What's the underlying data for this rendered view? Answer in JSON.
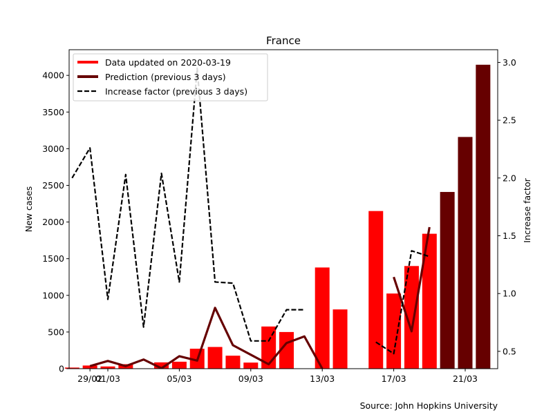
{
  "source_note": "Source: John Hopkins University",
  "chart_data": {
    "type": "bar",
    "title": "France",
    "ylabel": "New cases",
    "y2label": "Increase factor",
    "ylim": [
      0,
      4350
    ],
    "y2lim": [
      0.35,
      3.11
    ],
    "yticks": [
      0,
      500,
      1000,
      1500,
      2000,
      2500,
      3000,
      3500,
      4000
    ],
    "y2ticks": [
      0.5,
      1.0,
      1.5,
      2.0,
      2.5,
      3.0
    ],
    "y2tick_labels": [
      "0.5",
      "1.0",
      "1.5",
      "2.0",
      "2.5",
      "3.0"
    ],
    "xticks": [
      {
        "day": 1,
        "label": "29/02"
      },
      {
        "day": 2,
        "label": "01/03"
      },
      {
        "day": 6,
        "label": "05/03"
      },
      {
        "day": 10,
        "label": "09/03"
      },
      {
        "day": 14,
        "label": "13/03"
      },
      {
        "day": 18,
        "label": "17/03"
      },
      {
        "day": 22,
        "label": "21/03"
      }
    ],
    "grid": false,
    "legend_position": "top-left",
    "legend": [
      {
        "label": "Data updated on 2020-03-19",
        "color": "#ff0000",
        "style": "solid"
      },
      {
        "label": "Prediction (previous 3 days)",
        "color": "#660000",
        "style": "solid"
      },
      {
        "label": "Increase factor (previous 3 days)",
        "color": "#000000",
        "style": "dashed"
      }
    ],
    "series": [
      {
        "name": "Data updated on 2020-03-19",
        "color": "#ff0000",
        "x": [
          0,
          1,
          2,
          3,
          4,
          5,
          6,
          7,
          8,
          9,
          10,
          11,
          12,
          13,
          14,
          15,
          16,
          17,
          18,
          19,
          20
        ],
        "values": [
          15,
          43,
          30,
          61,
          5,
          86,
          95,
          272,
          296,
          177,
          83,
          575,
          500,
          0,
          1380,
          808,
          0,
          2150,
          1025,
          1400,
          1840
        ]
      },
      {
        "name": "Prediction (previous 3 days)",
        "color": "#660000",
        "x": [
          21,
          22,
          23
        ],
        "values": [
          2410,
          3160,
          4145
        ]
      }
    ],
    "prediction_line": {
      "color": "#660000",
      "x": [
        1,
        2,
        3,
        4,
        5,
        6,
        7,
        8,
        9,
        10,
        11,
        12,
        13,
        14
      ],
      "values": [
        35,
        105,
        35,
        125,
        5,
        170,
        110,
        830,
        320,
        190,
        60,
        350,
        440,
        0
      ],
      "x2": [
        18,
        19,
        20
      ],
      "values2": [
        1250,
        510,
        1930
      ]
    },
    "increase_factor": {
      "color": "#000000",
      "x": [
        0,
        1,
        2,
        3,
        4,
        5,
        6,
        7,
        8,
        9,
        10,
        11,
        12,
        13
      ],
      "values": [
        2.0,
        2.26,
        0.95,
        2.03,
        0.71,
        2.04,
        1.1,
        2.95,
        1.1,
        1.09,
        0.59,
        0.59,
        0.86,
        0.86
      ],
      "x2": [
        17,
        18,
        19,
        20
      ],
      "values2": [
        0.58,
        0.48,
        1.37,
        1.32
      ]
    }
  }
}
